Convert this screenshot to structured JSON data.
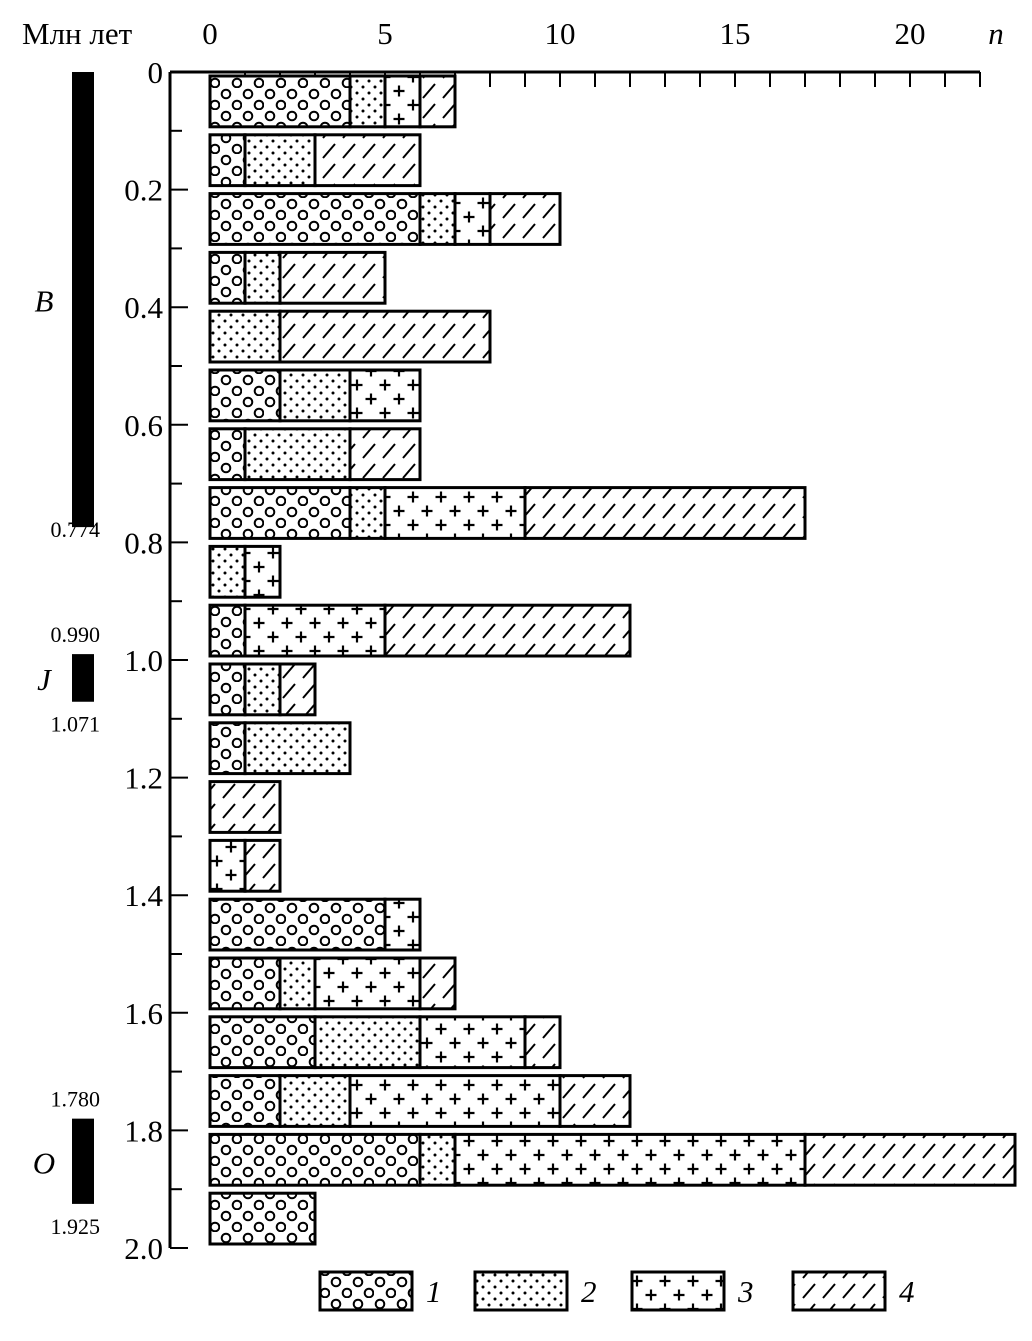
{
  "chart_data": {
    "type": "bar",
    "orientation": "horizontal",
    "stacked": true,
    "ylabel": "Млн лет",
    "xlabel": "n",
    "xlim": [
      0,
      22
    ],
    "ylim": [
      0,
      2.0
    ],
    "x_ticks": [
      "0",
      "5",
      "10",
      "15",
      "20"
    ],
    "y_ticks": [
      "0",
      "0.2",
      "0.4",
      "0.6",
      "0.8",
      "1.0",
      "1.2",
      "1.4",
      "1.6",
      "1.8",
      "2.0"
    ],
    "bin_width": 0.1,
    "bins": [
      {
        "from": 0.0,
        "to": 0.1,
        "values": [
          4,
          1,
          1,
          1
        ]
      },
      {
        "from": 0.1,
        "to": 0.2,
        "values": [
          1,
          2,
          0,
          3
        ]
      },
      {
        "from": 0.2,
        "to": 0.3,
        "values": [
          6,
          1,
          1,
          2
        ]
      },
      {
        "from": 0.3,
        "to": 0.4,
        "values": [
          1,
          1,
          0,
          3
        ]
      },
      {
        "from": 0.4,
        "to": 0.5,
        "values": [
          0,
          2,
          0,
          6
        ]
      },
      {
        "from": 0.5,
        "to": 0.6,
        "values": [
          2,
          2,
          2,
          0
        ]
      },
      {
        "from": 0.6,
        "to": 0.7,
        "values": [
          1,
          3,
          0,
          2
        ]
      },
      {
        "from": 0.7,
        "to": 0.8,
        "values": [
          4,
          1,
          4,
          8
        ]
      },
      {
        "from": 0.8,
        "to": 0.9,
        "values": [
          0,
          1,
          1,
          0
        ]
      },
      {
        "from": 0.9,
        "to": 1.0,
        "values": [
          1,
          0,
          4,
          7
        ]
      },
      {
        "from": 1.0,
        "to": 1.1,
        "values": [
          1,
          1,
          0,
          1
        ]
      },
      {
        "from": 1.1,
        "to": 1.2,
        "values": [
          1,
          3,
          0,
          0
        ]
      },
      {
        "from": 1.2,
        "to": 1.3,
        "values": [
          0,
          0,
          0,
          2
        ]
      },
      {
        "from": 1.3,
        "to": 1.4,
        "values": [
          0,
          0,
          1,
          1
        ]
      },
      {
        "from": 1.4,
        "to": 1.5,
        "values": [
          5,
          0,
          1,
          0
        ]
      },
      {
        "from": 1.5,
        "to": 1.6,
        "values": [
          2,
          1,
          3,
          1
        ]
      },
      {
        "from": 1.6,
        "to": 1.7,
        "values": [
          3,
          3,
          3,
          1
        ]
      },
      {
        "from": 1.7,
        "to": 1.8,
        "values": [
          2,
          2,
          6,
          2
        ]
      },
      {
        "from": 1.8,
        "to": 1.9,
        "values": [
          6,
          1,
          10,
          6
        ]
      },
      {
        "from": 1.9,
        "to": 2.0,
        "values": [
          3,
          0,
          0,
          0
        ]
      }
    ],
    "series": [
      {
        "name": "1",
        "pattern": "circles"
      },
      {
        "name": "2",
        "pattern": "dots"
      },
      {
        "name": "3",
        "pattern": "crosses"
      },
      {
        "name": "4",
        "pattern": "hatch"
      }
    ],
    "legend_placement": "bottom",
    "polarity_chrons": [
      {
        "name": "B",
        "from": 0.0,
        "to": 0.774,
        "labels": [
          "0.774"
        ]
      },
      {
        "name": "J",
        "from": 0.99,
        "to": 1.071,
        "labels": [
          "0.990",
          "1.071"
        ]
      },
      {
        "name": "O",
        "from": 1.78,
        "to": 1.925,
        "labels": [
          "1.780",
          "1.925"
        ]
      }
    ]
  }
}
